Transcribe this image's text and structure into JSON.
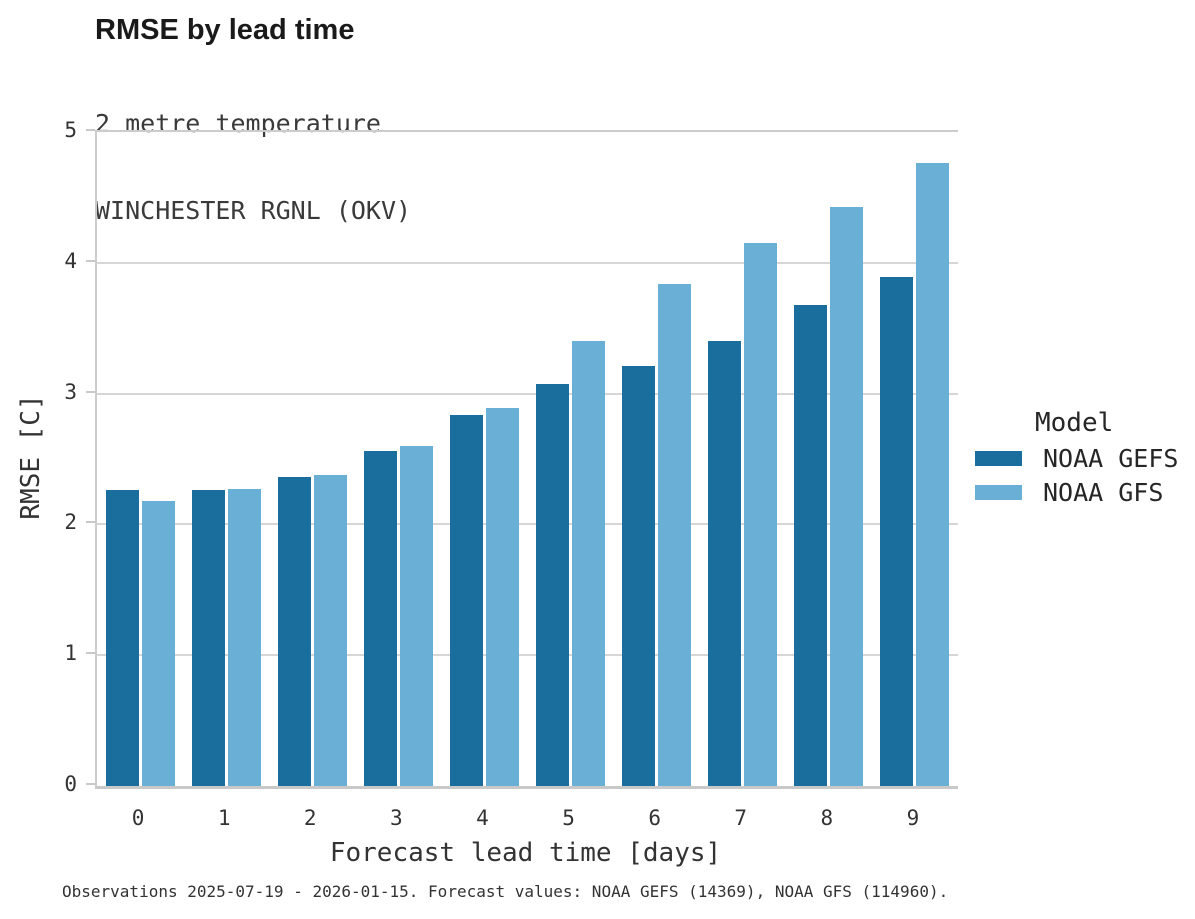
{
  "header": {
    "title": "RMSE by lead time",
    "subtitle_line1": "2 metre temperature",
    "subtitle_line2": "WINCHESTER RGNL (OKV)"
  },
  "legend": {
    "title": "Model",
    "entries": [
      {
        "label": "NOAA GEFS",
        "color": "#1a6e9e"
      },
      {
        "label": "NOAA GFS",
        "color": "#6aafd6"
      }
    ]
  },
  "footer": {
    "note": "Observations 2025-07-19 - 2026-01-15. Forecast values: NOAA GEFS (14369), NOAA GFS (114960)."
  },
  "chart_data": {
    "type": "bar",
    "title": "RMSE by lead time",
    "subtitle": [
      "2 metre temperature",
      "WINCHESTER RGNL (OKV)"
    ],
    "xlabel": "Forecast lead time [days]",
    "ylabel": "RMSE [C]",
    "categories": [
      "0",
      "1",
      "2",
      "3",
      "4",
      "5",
      "6",
      "7",
      "8",
      "9"
    ],
    "series": [
      {
        "name": "NOAA GEFS",
        "color": "#1a6e9e",
        "values": [
          2.26,
          2.26,
          2.36,
          2.56,
          2.84,
          3.07,
          3.21,
          3.4,
          3.68,
          3.89
        ]
      },
      {
        "name": "NOAA GFS",
        "color": "#6aafd6",
        "values": [
          2.18,
          2.27,
          2.38,
          2.6,
          2.89,
          3.4,
          3.84,
          4.15,
          4.43,
          4.76
        ]
      }
    ],
    "ylim": [
      0,
      5
    ],
    "yticks": [
      0,
      1,
      2,
      3,
      4,
      5
    ],
    "grid": true,
    "grid_color": "#d6d6d6",
    "legend_position": "right"
  }
}
